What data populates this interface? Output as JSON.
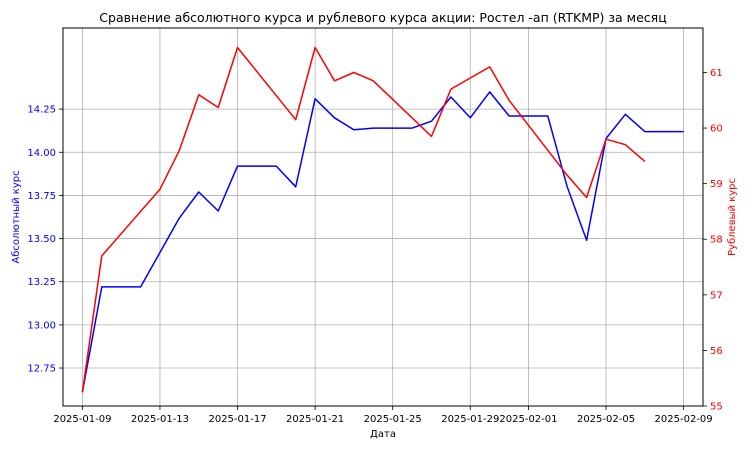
{
  "chart_data": {
    "type": "line",
    "title": "Сравнение абсолютного курса и рублевого курса акции: Ростел -ап (RTKMP) за месяц",
    "xlabel": "Дата",
    "ylabel_left": "Абсолютный курс",
    "ylabel_right": "Рублевый курс",
    "grid": true,
    "x_range": [
      "2025-01-08",
      "2025-02-10"
    ],
    "x_ticks": [
      "2025-01-09",
      "2025-01-13",
      "2025-01-17",
      "2025-01-21",
      "2025-01-25",
      "2025-01-29",
      "2025-02-01",
      "2025-02-05",
      "2025-02-09"
    ],
    "y_left_range": [
      12.53,
      14.72
    ],
    "y_left_ticks": [
      "12.75",
      "13.00",
      "13.25",
      "13.50",
      "13.75",
      "14.00",
      "14.25"
    ],
    "y_right_range": [
      55.0,
      61.8
    ],
    "y_right_ticks": [
      "55",
      "56",
      "57",
      "58",
      "59",
      "60",
      "61"
    ],
    "series": [
      {
        "axis": "left",
        "color": "#0000ff",
        "x": [
          "2025-01-09",
          "2025-01-10",
          "2025-01-12",
          "2025-01-13",
          "2025-01-14",
          "2025-01-15",
          "2025-01-16",
          "2025-01-17",
          "2025-01-19",
          "2025-01-20",
          "2025-01-21",
          "2025-01-22",
          "2025-01-23",
          "2025-01-24",
          "2025-01-26",
          "2025-01-27",
          "2025-01-28",
          "2025-01-29",
          "2025-01-30",
          "2025-01-31",
          "2025-02-02",
          "2025-02-03",
          "2025-02-04",
          "2025-02-05",
          "2025-02-06",
          "2025-02-07",
          "2025-02-09"
        ],
        "values": [
          12.61,
          13.22,
          13.22,
          13.42,
          13.62,
          13.77,
          13.66,
          13.92,
          13.92,
          13.8,
          14.31,
          14.2,
          14.13,
          14.14,
          14.14,
          14.18,
          14.32,
          14.2,
          14.35,
          14.21,
          14.21,
          13.8,
          13.49,
          14.08,
          14.22,
          14.12,
          14.12
        ]
      },
      {
        "axis": "right",
        "color": "#ff0000",
        "x": [
          "2025-01-09",
          "2025-01-10",
          "2025-01-13",
          "2025-01-14",
          "2025-01-15",
          "2025-01-16",
          "2025-01-17",
          "2025-01-20",
          "2025-01-21",
          "2025-01-22",
          "2025-01-23",
          "2025-01-24",
          "2025-01-27",
          "2025-01-28",
          "2025-01-29",
          "2025-01-30",
          "2025-01-31",
          "2025-02-03",
          "2025-02-04",
          "2025-02-05",
          "2025-02-06",
          "2025-02-07"
        ],
        "values": [
          55.25,
          57.7,
          58.9,
          59.6,
          60.6,
          60.37,
          61.45,
          60.15,
          61.45,
          60.85,
          61.0,
          60.85,
          59.85,
          60.7,
          60.9,
          61.1,
          60.5,
          59.15,
          58.75,
          59.8,
          59.7,
          59.4
        ]
      }
    ]
  }
}
